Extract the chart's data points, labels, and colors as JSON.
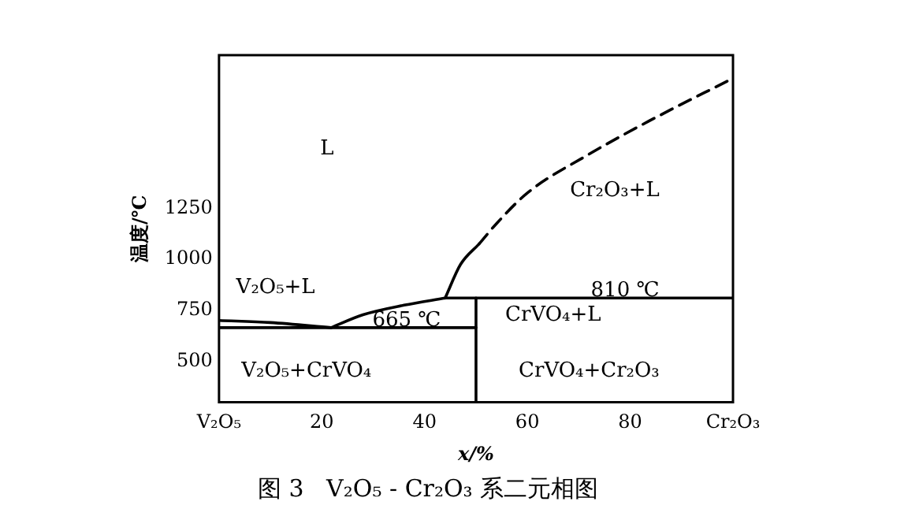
{
  "chart_data": {
    "type": "line",
    "title": "图 3   V₂O₅ - Cr₂O₃ 系二元相图",
    "xlabel": "x/%",
    "ylabel": "温度/℃",
    "xlim": [
      0,
      100
    ],
    "xticks": [
      {
        "value": 0,
        "label": "V₂O₅"
      },
      20,
      40,
      60,
      80,
      {
        "value": 100,
        "label": "Cr₂O₃"
      }
    ],
    "ylim": [
      300,
      2000
    ],
    "yticks": [
      500,
      750,
      1000,
      1250
    ],
    "grid": false,
    "legend": false,
    "marker": "none",
    "series": [
      {
        "color": "#000000",
        "line_style": "solid",
        "x": [
          0,
          10,
          21.8
        ],
        "values": [
          700,
          690,
          665
        ]
      },
      {
        "color": "#000000",
        "line_style": "solid",
        "x": [
          21.8,
          28,
          36,
          44
        ],
        "values": [
          665,
          728,
          775,
          810
        ]
      },
      {
        "color": "#000000",
        "line_style": "solid",
        "x": [
          44,
          47,
          50.6
        ],
        "values": [
          810,
          975,
          1075
        ]
      },
      {
        "color": "#000000",
        "line_style": "dashed",
        "x": [
          50.6,
          54,
          60,
          71.8,
          83.5,
          100
        ],
        "values": [
          1075,
          1175,
          1325,
          1512,
          1675,
          1887
        ]
      },
      {
        "color": "#000000",
        "line_style": "solid",
        "x": [
          0,
          50
        ],
        "values": [
          665,
          665
        ]
      },
      {
        "color": "#000000",
        "line_style": "solid",
        "x": [
          44,
          100
        ],
        "values": [
          810,
          810
        ]
      },
      {
        "color": "#000000",
        "line_style": "solid",
        "x": [
          50,
          50
        ],
        "values": [
          300,
          810
        ]
      }
    ],
    "annotations": [
      "L",
      "Cr₂O₃+L",
      "V₂O₅+L",
      {
        "text": "810 ℃",
        "x": 79,
        "y": 845
      },
      {
        "text": "665 ℃",
        "x": 36.5,
        "y": 700
      },
      "CrVO₄+L",
      "V₂O₅+CrVO₄",
      "CrVO₄+Cr₂O₃"
    ]
  }
}
